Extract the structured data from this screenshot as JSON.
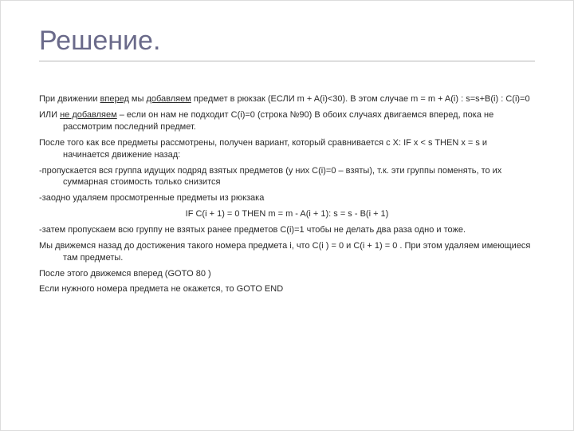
{
  "slide": {
    "title": "Решение.",
    "title_color": "#6a6a8a",
    "title_fontsize": 34,
    "body_fontsize": 11,
    "text_color": "#2a2a2a",
    "underline_color": "#2a2a2a",
    "divider_color": "#b8b8b8",
    "background_color": "#ffffff",
    "lines": {
      "l1a": "При движении ",
      "l1b": "вперед",
      "l1c": " мы ",
      "l1d": "добавляем",
      "l1e": " предмет в рюкзак (ЕСЛИ m + A(i)<30). В этом случае m = m + A(i) : s=s+B(i) : C(i)=0",
      "l2a": "ИЛИ ",
      "l2b": "не добавляем",
      "l2c": " – если он нам не подходит C(i)=0  (строка №90) В обоих случаях двигаемся вперед, пока не рассмотрим последний предмет.",
      "l3": "После того как все предметы рассмотрены, получен вариант, который сравнивается с X:    IF x < s THEN x = s и начинается движение назад:",
      "l4": "-пропускается вся группа идущих подряд взятых предметов (у них C(i)=0 – взяты), т.к. эти группы поменять, то их суммарная стоимость только снизится",
      "l5": "-заодно удаляем просмотренные предметы из рюкзака",
      "l6": "IF C(i + 1) = 0 THEN m = m - A(i + 1): s = s - B(i + 1)",
      "l7": "-затем пропускаем всю группу не взятых ранее предметов C(i)=1 чтобы не делать два раза одно и тоже.",
      "l8": "Мы движемся назад до достижения такого номера предмета i, что C(i ) = 0   и        C(i + 1) = 0 . При этом удаляем имеющиеся там предметы.",
      "l9": "После этого движемся вперед (GOTO 80 )",
      "l10": "Если нужного номера предмета не окажется, то GOTO  END"
    }
  }
}
